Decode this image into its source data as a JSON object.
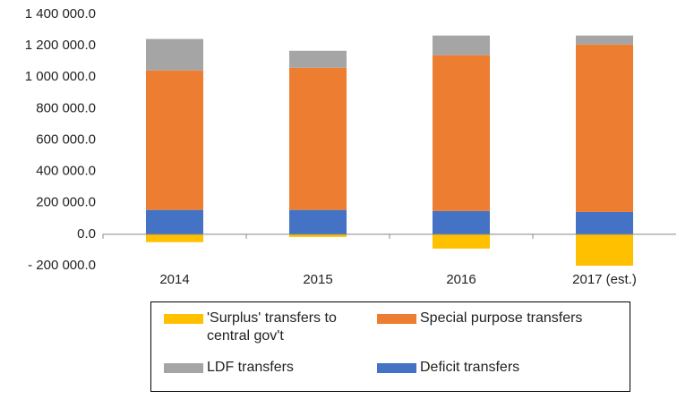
{
  "chart_data": {
    "type": "stacked-bar",
    "categories": [
      "2014",
      "2015",
      "2016",
      "2017 (est.)"
    ],
    "series": [
      {
        "name": "'Surplus' transfers to central gov't",
        "color": "#ffc000",
        "values": [
          -50000,
          -17000,
          -91000,
          -200000
        ]
      },
      {
        "name": "Special purpose transfers",
        "color": "#ed7d31",
        "values": [
          888000,
          905000,
          992000,
          1066000
        ]
      },
      {
        "name": "LDF transfers",
        "color": "#a5a5a5",
        "values": [
          200000,
          108000,
          125000,
          57000
        ]
      },
      {
        "name": "Deficit transfers",
        "color": "#4472c4",
        "values": [
          155000,
          155000,
          148000,
          142000
        ]
      }
    ],
    "ylim": [
      -200000,
      1400000
    ],
    "yticks": [
      {
        "value": -200000,
        "label": "- 200 000.0"
      },
      {
        "value": 0,
        "label": "0.0"
      },
      {
        "value": 200000,
        "label": "200 000.0"
      },
      {
        "value": 400000,
        "label": "400 000.0"
      },
      {
        "value": 600000,
        "label": "600 000.0"
      },
      {
        "value": 800000,
        "label": "800 000.0"
      },
      {
        "value": 1000000,
        "label": "1 000 000.0"
      },
      {
        "value": 1200000,
        "label": "1 200 000.0"
      },
      {
        "value": 1400000,
        "label": "1 400 000.0"
      }
    ],
    "grid": false
  }
}
